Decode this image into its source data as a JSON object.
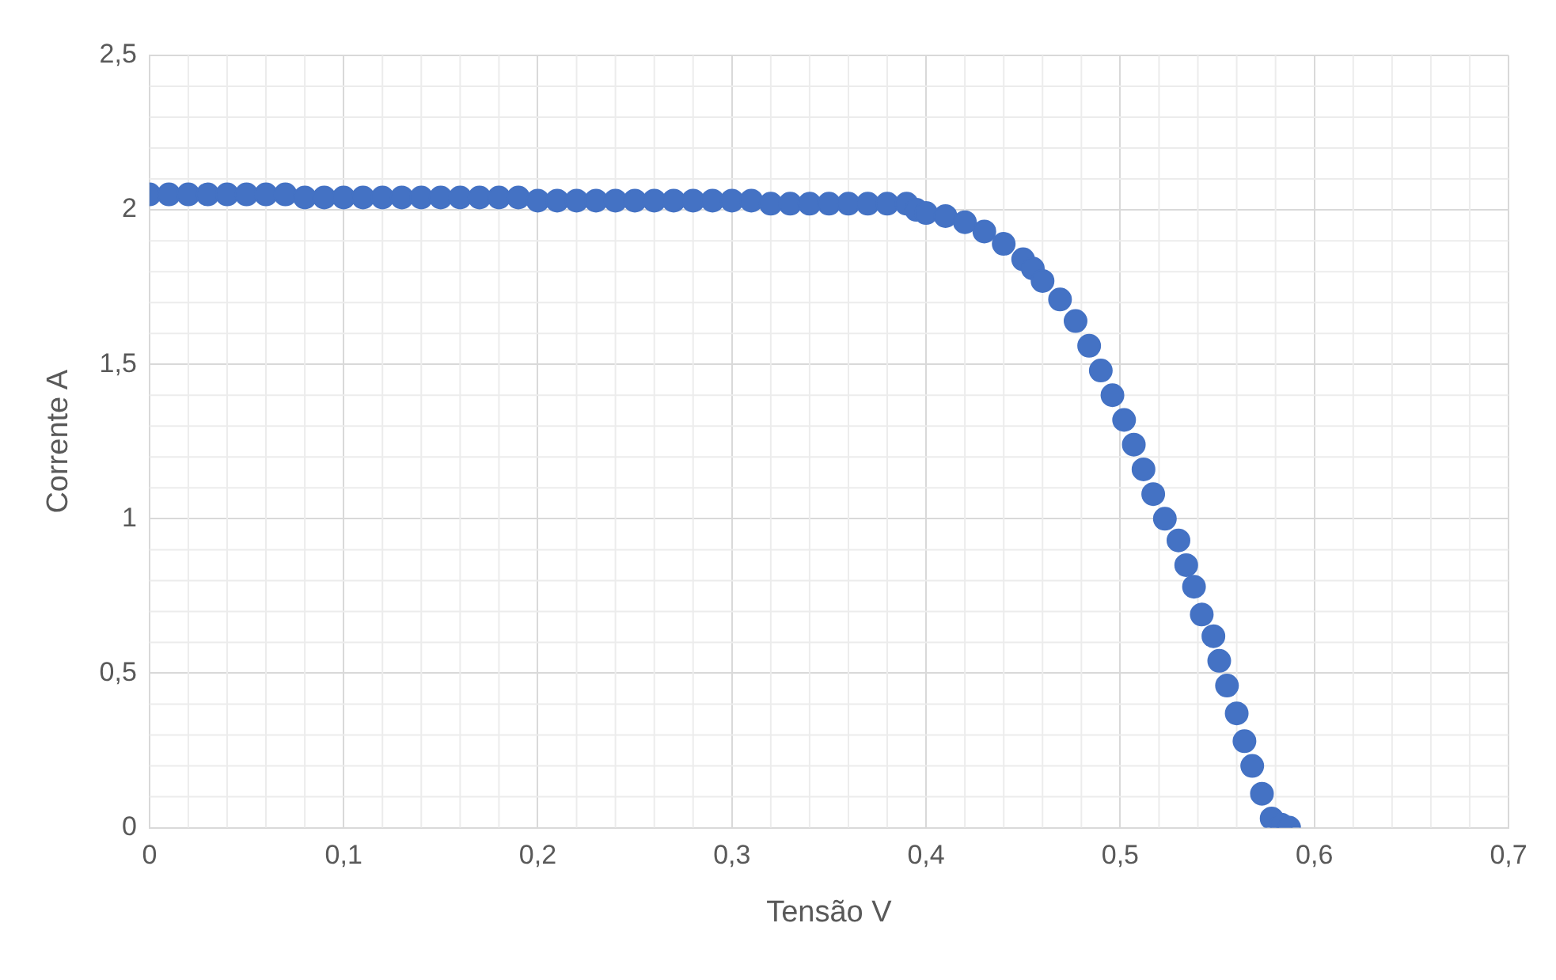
{
  "chart_data": {
    "type": "scatter",
    "xlabel": "Tensão V",
    "ylabel": "Corrente A",
    "grid": true,
    "legend": false,
    "marker": "circle",
    "xlim": [
      0,
      0.7
    ],
    "xticks": [
      {
        "value": 0,
        "label": "0"
      },
      {
        "value": 0.1,
        "label": "0,1"
      },
      {
        "value": 0.2,
        "label": "0,2"
      },
      {
        "value": 0.3,
        "label": "0,3"
      },
      {
        "value": 0.4,
        "label": "0,4"
      },
      {
        "value": 0.5,
        "label": "0,5"
      },
      {
        "value": 0.6,
        "label": "0,6"
      },
      {
        "value": 0.7,
        "label": "0,7"
      }
    ],
    "ylim": [
      0,
      2.5
    ],
    "yticks": [
      {
        "value": 0,
        "label": "0"
      },
      {
        "value": 0.5,
        "label": "0,5"
      },
      {
        "value": 1,
        "label": "1"
      },
      {
        "value": 1.5,
        "label": "1,5"
      },
      {
        "value": 2,
        "label": "2"
      },
      {
        "value": 2.5,
        "label": "2,5"
      }
    ],
    "series": [
      {
        "color": "#4472c4",
        "x": [
          0,
          0.01,
          0.02,
          0.03,
          0.04,
          0.05,
          0.06,
          0.07,
          0.08,
          0.09,
          0.1,
          0.11,
          0.12,
          0.13,
          0.14,
          0.15,
          0.16,
          0.17,
          0.18,
          0.19,
          0.2,
          0.21,
          0.22,
          0.23,
          0.24,
          0.25,
          0.26,
          0.27,
          0.28,
          0.29,
          0.3,
          0.31,
          0.32,
          0.33,
          0.34,
          0.35,
          0.36,
          0.37,
          0.38,
          0.39,
          0.395,
          0.4,
          0.41,
          0.42,
          0.43,
          0.44,
          0.45,
          0.455,
          0.46,
          0.469,
          0.477,
          0.484,
          0.49,
          0.496,
          0.502,
          0.507,
          0.512,
          0.517,
          0.523,
          0.53,
          0.534,
          0.538,
          0.542,
          0.548,
          0.551,
          0.555,
          0.56,
          0.564,
          0.568,
          0.573,
          0.578,
          0.583,
          0.587
        ],
        "values": [
          2.05,
          2.05,
          2.05,
          2.05,
          2.05,
          2.05,
          2.05,
          2.05,
          2.04,
          2.04,
          2.04,
          2.04,
          2.04,
          2.04,
          2.04,
          2.04,
          2.04,
          2.04,
          2.04,
          2.04,
          2.03,
          2.03,
          2.03,
          2.03,
          2.03,
          2.03,
          2.03,
          2.03,
          2.03,
          2.03,
          2.03,
          2.03,
          2.02,
          2.02,
          2.02,
          2.02,
          2.02,
          2.02,
          2.02,
          2.02,
          2,
          1.99,
          1.98,
          1.96,
          1.93,
          1.89,
          1.84,
          1.81,
          1.77,
          1.71,
          1.64,
          1.56,
          1.48,
          1.4,
          1.32,
          1.24,
          1.16,
          1.08,
          1,
          0.93,
          0.85,
          0.78,
          0.69,
          0.62,
          0.54,
          0.46,
          0.37,
          0.28,
          0.2,
          0.11,
          0.03,
          0.01,
          0
        ]
      }
    ]
  }
}
